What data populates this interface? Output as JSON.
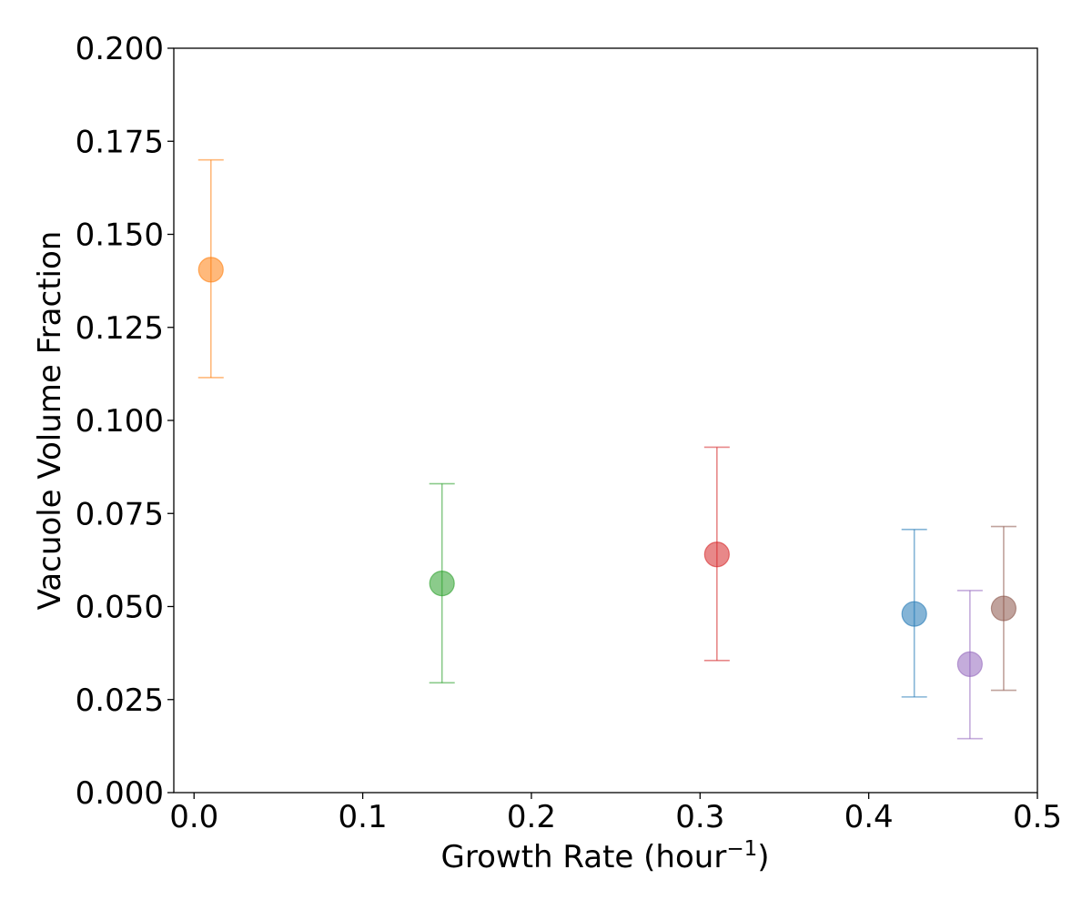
{
  "chart_data": {
    "type": "scatter",
    "title": "",
    "xlabel": "Growth Rate (hour",
    "xlabel_superscript": "−1",
    "xlabel_suffix": ")",
    "ylabel": "Vacuole Volume Fraction",
    "xlim": [
      -0.012,
      0.5
    ],
    "ylim": [
      0.0,
      0.2
    ],
    "xticks": [
      0.0,
      0.1,
      0.2,
      0.3,
      0.4,
      0.5
    ],
    "xtick_labels": [
      "0.0",
      "0.1",
      "0.2",
      "0.3",
      "0.4",
      "0.5"
    ],
    "yticks": [
      0.0,
      0.025,
      0.05,
      0.075,
      0.1,
      0.125,
      0.15,
      0.175,
      0.2
    ],
    "ytick_labels": [
      "0.000",
      "0.025",
      "0.050",
      "0.075",
      "0.100",
      "0.125",
      "0.150",
      "0.175",
      "0.200"
    ],
    "grid": false,
    "points": [
      {
        "x": 0.01,
        "y": 0.1405,
        "err_low": 0.1115,
        "err_high": 0.17,
        "color": "#ff7f0e"
      },
      {
        "x": 0.147,
        "y": 0.0562,
        "err_low": 0.0295,
        "err_high": 0.083,
        "color": "#2ca02c"
      },
      {
        "x": 0.31,
        "y": 0.064,
        "err_low": 0.0355,
        "err_high": 0.0928,
        "color": "#d62728"
      },
      {
        "x": 0.427,
        "y": 0.048,
        "err_low": 0.0257,
        "err_high": 0.0707,
        "color": "#1f77b4"
      },
      {
        "x": 0.46,
        "y": 0.0345,
        "err_low": 0.0145,
        "err_high": 0.0543,
        "color": "#9467bd"
      },
      {
        "x": 0.48,
        "y": 0.0495,
        "err_low": 0.0275,
        "err_high": 0.0715,
        "color": "#8c564b"
      }
    ]
  }
}
